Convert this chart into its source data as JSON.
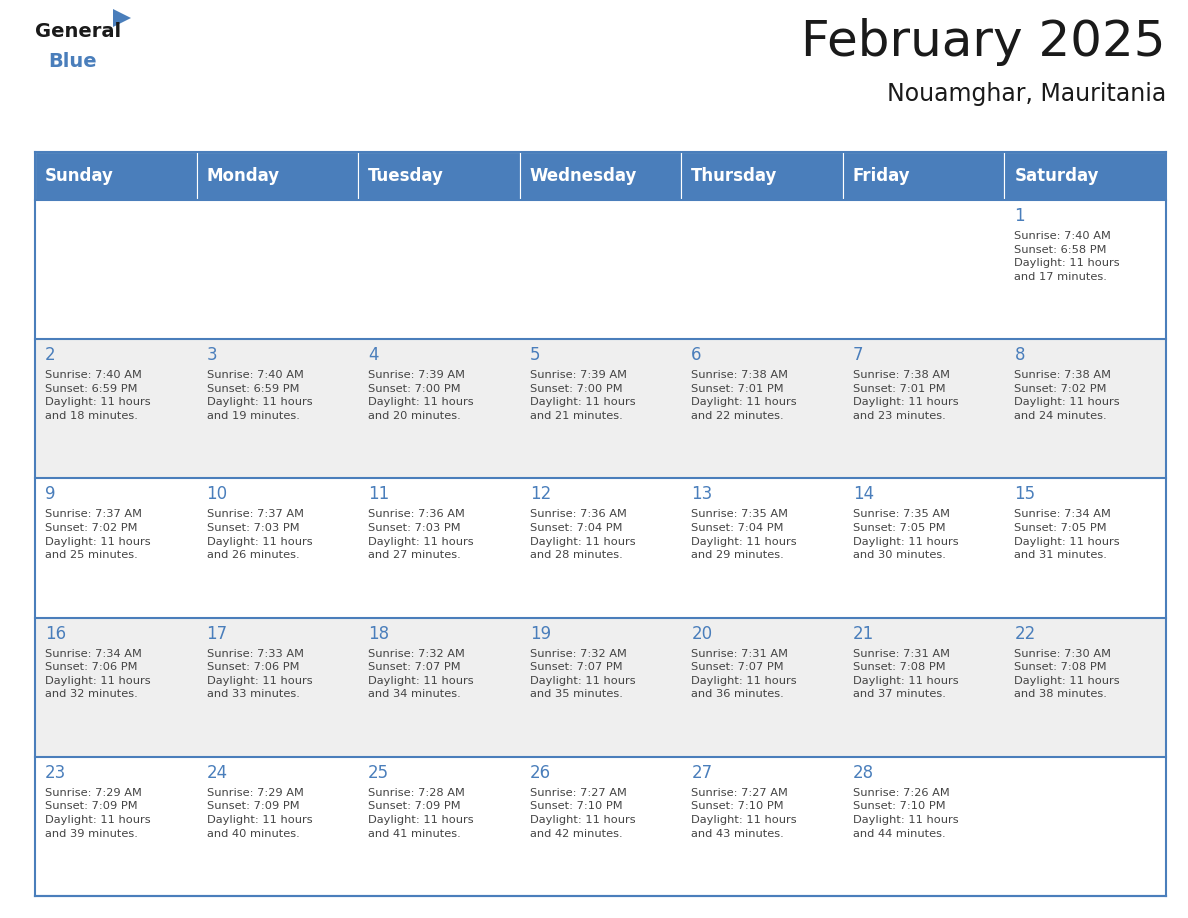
{
  "title": "February 2025",
  "subtitle": "Nouamghar, Mauritania",
  "days_of_week": [
    "Sunday",
    "Monday",
    "Tuesday",
    "Wednesday",
    "Thursday",
    "Friday",
    "Saturday"
  ],
  "header_bg": "#4A7EBB",
  "header_text": "#FFFFFF",
  "cell_bg_light": "#EFEFEF",
  "cell_bg_white": "#FFFFFF",
  "border_color": "#4A7EBB",
  "text_color": "#444444",
  "day_number_color": "#4A7EBB",
  "calendar": [
    [
      null,
      null,
      null,
      null,
      null,
      null,
      1
    ],
    [
      2,
      3,
      4,
      5,
      6,
      7,
      8
    ],
    [
      9,
      10,
      11,
      12,
      13,
      14,
      15
    ],
    [
      16,
      17,
      18,
      19,
      20,
      21,
      22
    ],
    [
      23,
      24,
      25,
      26,
      27,
      28,
      null
    ]
  ],
  "sunrise": {
    "1": "7:40 AM",
    "2": "7:40 AM",
    "3": "7:40 AM",
    "4": "7:39 AM",
    "5": "7:39 AM",
    "6": "7:38 AM",
    "7": "7:38 AM",
    "8": "7:38 AM",
    "9": "7:37 AM",
    "10": "7:37 AM",
    "11": "7:36 AM",
    "12": "7:36 AM",
    "13": "7:35 AM",
    "14": "7:35 AM",
    "15": "7:34 AM",
    "16": "7:34 AM",
    "17": "7:33 AM",
    "18": "7:32 AM",
    "19": "7:32 AM",
    "20": "7:31 AM",
    "21": "7:31 AM",
    "22": "7:30 AM",
    "23": "7:29 AM",
    "24": "7:29 AM",
    "25": "7:28 AM",
    "26": "7:27 AM",
    "27": "7:27 AM",
    "28": "7:26 AM"
  },
  "sunset": {
    "1": "6:58 PM",
    "2": "6:59 PM",
    "3": "6:59 PM",
    "4": "7:00 PM",
    "5": "7:00 PM",
    "6": "7:01 PM",
    "7": "7:01 PM",
    "8": "7:02 PM",
    "9": "7:02 PM",
    "10": "7:03 PM",
    "11": "7:03 PM",
    "12": "7:04 PM",
    "13": "7:04 PM",
    "14": "7:05 PM",
    "15": "7:05 PM",
    "16": "7:06 PM",
    "17": "7:06 PM",
    "18": "7:07 PM",
    "19": "7:07 PM",
    "20": "7:07 PM",
    "21": "7:08 PM",
    "22": "7:08 PM",
    "23": "7:09 PM",
    "24": "7:09 PM",
    "25": "7:09 PM",
    "26": "7:10 PM",
    "27": "7:10 PM",
    "28": "7:10 PM"
  },
  "daylight_minutes": {
    "1": 17,
    "2": 18,
    "3": 19,
    "4": 20,
    "5": 21,
    "6": 22,
    "7": 23,
    "8": 24,
    "9": 25,
    "10": 26,
    "11": 27,
    "12": 28,
    "13": 29,
    "14": 30,
    "15": 31,
    "16": 32,
    "17": 33,
    "18": 34,
    "19": 35,
    "20": 36,
    "21": 37,
    "22": 38,
    "23": 39,
    "24": 40,
    "25": 41,
    "26": 42,
    "27": 43,
    "28": 44
  }
}
